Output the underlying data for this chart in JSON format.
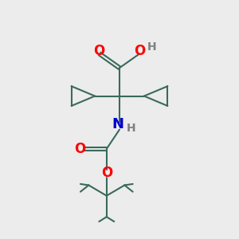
{
  "bg_color": "#ececec",
  "bond_color": "#3a6a5a",
  "o_color": "#ff0000",
  "n_color": "#0000cc",
  "h_color": "#808080",
  "line_width": 1.5,
  "figsize": [
    3.0,
    3.0
  ],
  "dpi": 100,
  "xlim": [
    0,
    10
  ],
  "ylim": [
    0,
    10
  ]
}
